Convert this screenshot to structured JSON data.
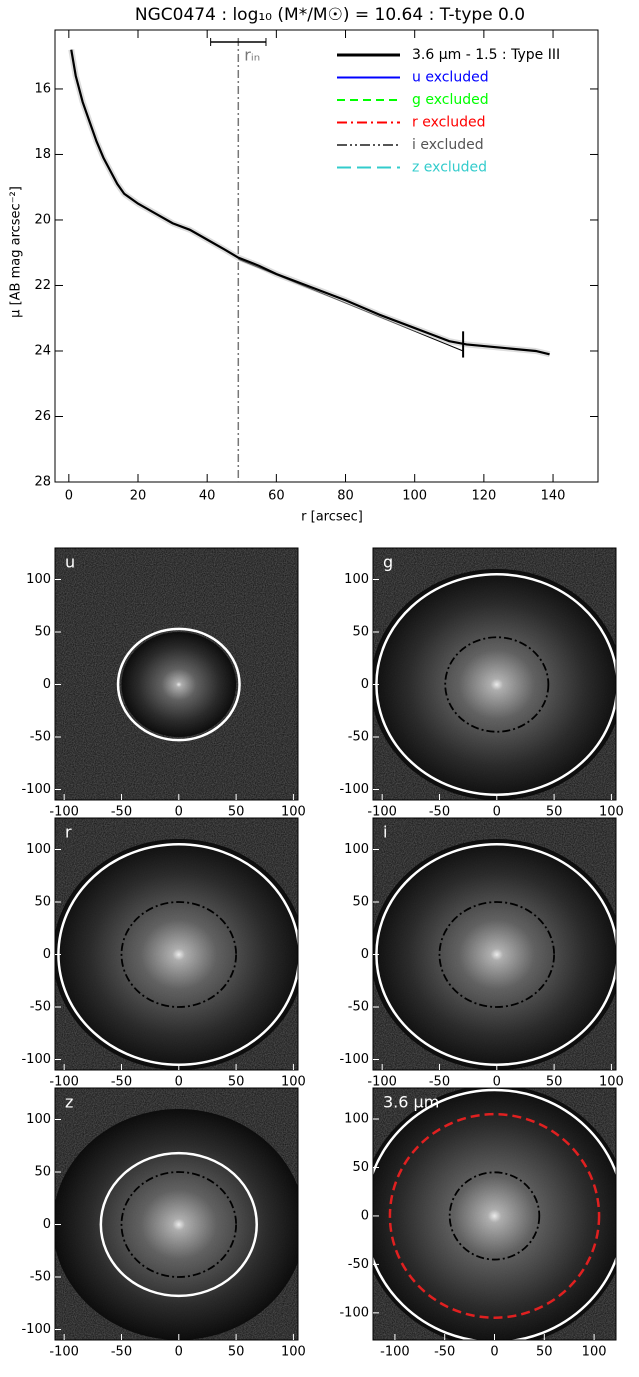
{
  "chart_data": {
    "type": "line",
    "title": "NGC0474 : log₁₀ (M*/M☉) = 10.64 : T-type 0.0",
    "x_label": "r [arcsec]",
    "y_label": "μ [AB mag arcsec⁻²]",
    "xlim": [
      -4,
      153
    ],
    "ylim": [
      14.2,
      28
    ],
    "y_inverted": true,
    "xticks": [
      0,
      20,
      40,
      60,
      80,
      100,
      120,
      140
    ],
    "yticks": [
      16,
      18,
      20,
      22,
      24,
      26,
      28
    ],
    "x": [
      0.7,
      2,
      4,
      6,
      8,
      10,
      12,
      14,
      16,
      20,
      25,
      30,
      35,
      40,
      45,
      49,
      55,
      60,
      70,
      80,
      90,
      100,
      105,
      110,
      115,
      120,
      125,
      130,
      135,
      139
    ],
    "series": [
      {
        "name": "3.6 μm - 1.5 : Type III",
        "color": "#000000",
        "values": [
          14.8,
          15.6,
          16.4,
          17.0,
          17.6,
          18.1,
          18.5,
          18.9,
          19.2,
          19.5,
          19.8,
          20.1,
          20.3,
          20.6,
          20.9,
          21.15,
          21.4,
          21.65,
          22.05,
          22.45,
          22.9,
          23.3,
          23.5,
          23.7,
          23.8,
          23.85,
          23.9,
          23.95,
          24.0,
          24.1
        ]
      }
    ],
    "excluded": [
      {
        "name": "u excluded",
        "color": "#0000ff"
      },
      {
        "name": "g excluded",
        "color": "#00ff00"
      },
      {
        "name": "r excluded",
        "color": "#ff0000"
      },
      {
        "name": "i excluded",
        "color": "#555555"
      },
      {
        "name": "z excluded",
        "color": "#33cccc"
      }
    ],
    "fit": {
      "x": [
        49,
        114
      ],
      "values": [
        21.2,
        24.0
      ]
    },
    "r_in": 49,
    "r_in_range": [
      41,
      57
    ],
    "r_in_label": "rᵢₙ",
    "break_r": 114,
    "panels": [
      {
        "label": "u",
        "xlim": [
          -108,
          104
        ],
        "ylim": [
          -110,
          130
        ],
        "xticks": [
          -100,
          -50,
          0,
          50,
          100
        ],
        "yticks": [
          -100,
          -50,
          0,
          50,
          100
        ],
        "rings": [
          {
            "r": 53,
            "style": "white"
          }
        ]
      },
      {
        "label": "g",
        "xlim": [
          -108,
          104
        ],
        "ylim": [
          -110,
          130
        ],
        "xticks": [
          -100,
          -50,
          0,
          50,
          100
        ],
        "yticks": [
          -100,
          -50,
          0,
          50,
          100
        ],
        "rings": [
          {
            "r": 105,
            "style": "white"
          },
          {
            "r": 45,
            "style": "dashdot"
          }
        ]
      },
      {
        "label": "r",
        "xlim": [
          -108,
          104
        ],
        "ylim": [
          -110,
          130
        ],
        "xticks": [
          -100,
          -50,
          0,
          50,
          100
        ],
        "yticks": [
          -100,
          -50,
          0,
          50,
          100
        ],
        "rings": [
          {
            "r": 105,
            "style": "white"
          },
          {
            "r": 50,
            "style": "dashdot"
          }
        ]
      },
      {
        "label": "i",
        "xlim": [
          -108,
          104
        ],
        "ylim": [
          -110,
          130
        ],
        "xticks": [
          -100,
          -50,
          0,
          50,
          100
        ],
        "yticks": [
          -100,
          -50,
          0,
          50,
          100
        ],
        "rings": [
          {
            "r": 105,
            "style": "white"
          },
          {
            "r": 50,
            "style": "dashdot"
          }
        ]
      },
      {
        "label": "z",
        "xlim": [
          -108,
          104
        ],
        "ylim": [
          -110,
          130
        ],
        "xticks": [
          -100,
          -50,
          0,
          50,
          100
        ],
        "yticks": [
          -100,
          -50,
          0,
          50,
          100
        ],
        "rings": [
          {
            "r": 68,
            "style": "white"
          },
          {
            "r": 50,
            "style": "dashdot"
          }
        ]
      },
      {
        "label": "3.6 μm",
        "xlim": [
          -122,
          122
        ],
        "ylim": [
          -128,
          132
        ],
        "xticks": [
          -100,
          -50,
          0,
          50,
          100
        ],
        "yticks": [
          -100,
          -50,
          0,
          50,
          100
        ],
        "rings": [
          {
            "r": 130,
            "style": "white"
          },
          {
            "r": 105,
            "style": "reddash"
          },
          {
            "r": 45,
            "style": "dashdot"
          }
        ]
      }
    ]
  }
}
